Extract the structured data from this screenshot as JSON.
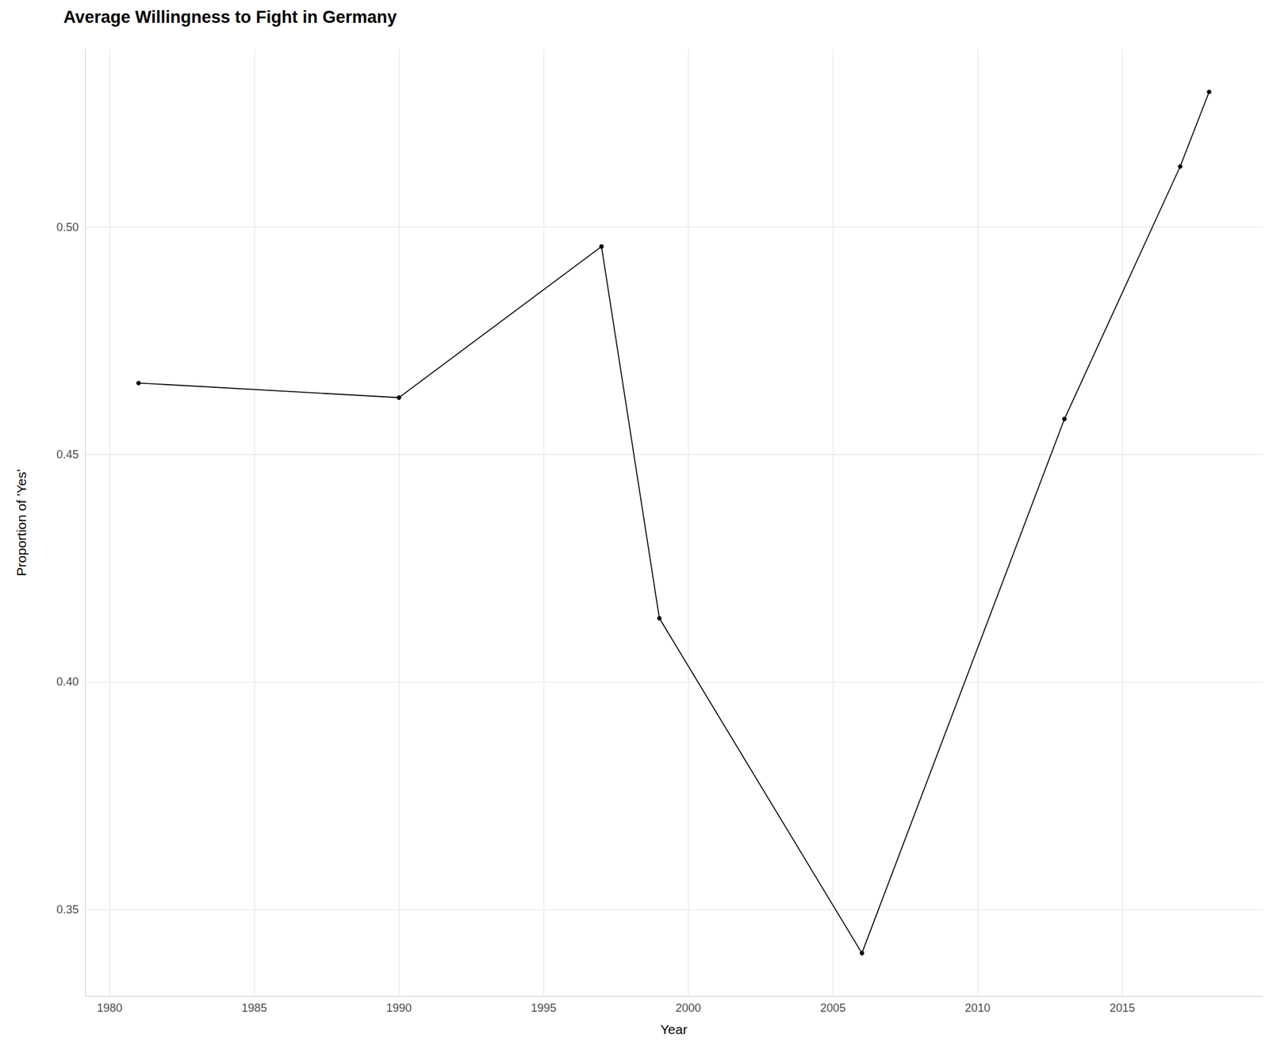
{
  "chart_data": {
    "type": "line",
    "title": "Average Willingness to Fight in Germany",
    "x_label": "Year",
    "y_label": "Proportion of 'Yes'",
    "x": [
      1981,
      1990,
      1997,
      1999,
      2006,
      2013,
      2017,
      2018
    ],
    "values": [
      0.4657,
      0.4625,
      0.4957,
      0.414,
      0.3404,
      0.4578,
      0.5133,
      0.5297
    ],
    "color": "#000000",
    "marker": "circle",
    "line_style": "solid",
    "xlim": [
      1979.15,
      2019.85
    ],
    "xticks": [
      1980,
      1985,
      1990,
      1995,
      2000,
      2005,
      2010,
      2015
    ],
    "ylim": [
      0.331,
      0.539
    ],
    "yticks": [
      0.35,
      {
        "value": 0.4,
        "label": "0.40"
      },
      0.45,
      {
        "value": 0.5,
        "label": "0.50"
      }
    ],
    "grid": true
  }
}
